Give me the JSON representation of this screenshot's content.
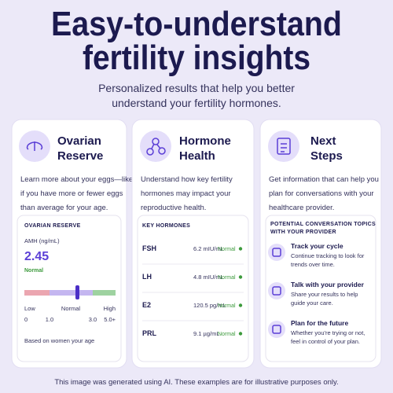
{
  "header": {
    "title": [
      "Easy-to-understand",
      "fertility insights"
    ],
    "subtitle": [
      "Personalized results that help you better",
      "understand your fertility hormones."
    ]
  },
  "cards": [
    {
      "title": [
        "Ovarian",
        "Reserve"
      ],
      "description": [
        "Learn more about your eggs—like",
        "if you have more or fewer eggs",
        "than average for your age."
      ],
      "panel": {
        "heading": "OVARIAN RESERVE",
        "label": "AMH (ng/mL)",
        "value": "2.45",
        "status": "Normal",
        "scale_labels": [
          "Low",
          "Normal",
          "High"
        ],
        "scale_ticks": [
          "0",
          "1.0",
          "3.0",
          "5.0+"
        ],
        "note": "Based on women your age"
      }
    },
    {
      "title": [
        "Hormone",
        "Health"
      ],
      "description": [
        "Understand how key fertility",
        "hormones may impact your",
        "reproductive health."
      ],
      "panel": {
        "heading": "KEY HORMONES",
        "rows": [
          {
            "name": "FSH",
            "value": "6.2 mIU/mL",
            "status": "Normal"
          },
          {
            "name": "LH",
            "value": "4.8 mIU/mL",
            "status": "Normal"
          },
          {
            "name": "E2",
            "value": "120.5 pg/mL",
            "status": "Normal"
          },
          {
            "name": "PRL",
            "value": "9.1 µg/mL",
            "status": "Normal"
          }
        ]
      }
    },
    {
      "title": [
        "Next",
        "Steps"
      ],
      "description": [
        "Get information that can help you",
        "plan for conversations with your",
        "healthcare provider."
      ],
      "panel": {
        "heading": [
          "POTENTIAL CONVERSATION TOPICS",
          "WITH YOUR PROVIDER"
        ],
        "items": [
          {
            "title": "Track your cycle",
            "description": [
              "Continue tracking to look for",
              "trends over time."
            ]
          },
          {
            "title": "Talk with your provider",
            "description": [
              "Share your results to help",
              "guide your care."
            ]
          },
          {
            "title": "Plan for the future",
            "description": [
              "Whether you're trying or not,",
              "feel in control of your plan."
            ]
          }
        ]
      }
    }
  ],
  "footer": "This image was generated using AI. These examples are for illustrative purposes only."
}
